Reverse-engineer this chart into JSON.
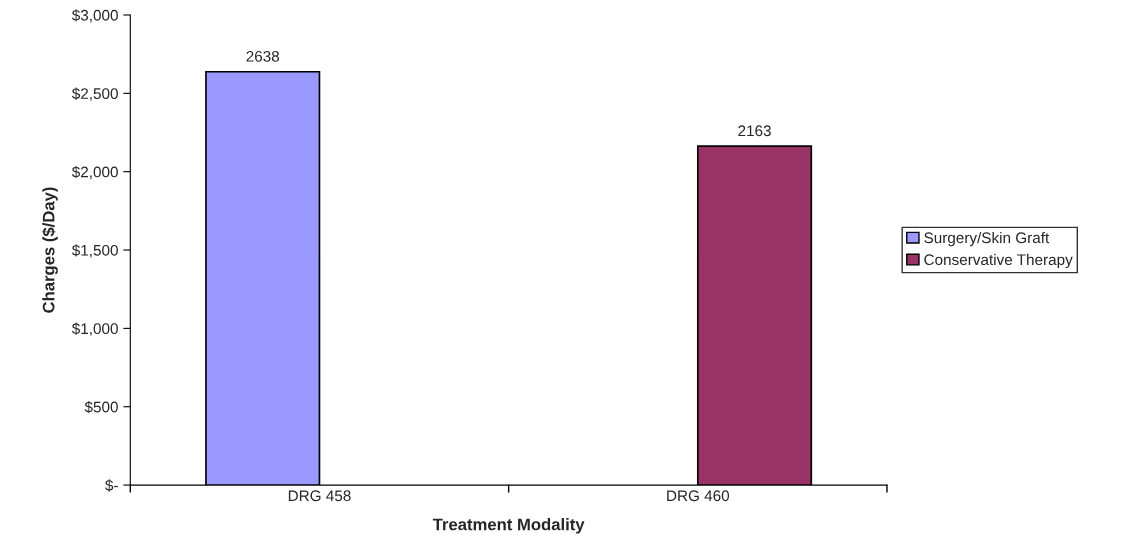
{
  "chart_data": {
    "type": "bar",
    "xlabel": "Treatment Modality",
    "ylabel": "Charges ($/Day)",
    "categories": [
      "DRG 458",
      "DRG 460"
    ],
    "series": [
      {
        "name": "Surgery/Skin Graft",
        "color": "#9999ff",
        "values": [
          2638,
          null
        ]
      },
      {
        "name": "Conservative Therapy",
        "color": "#993366",
        "values": [
          null,
          2163
        ]
      }
    ],
    "ylim": [
      0,
      3000
    ],
    "yticks": [
      {
        "value": 0,
        "label": "$-"
      },
      {
        "value": 500,
        "label": "$500"
      },
      {
        "value": 1000,
        "label": "$1,000"
      },
      {
        "value": 1500,
        "label": "$1,500"
      },
      {
        "value": 2000,
        "label": "$2,000"
      },
      {
        "value": 2500,
        "label": "$2,500"
      },
      {
        "value": 3000,
        "label": "$3,000"
      }
    ],
    "data_labels": true,
    "grid": false,
    "legend": "right"
  }
}
